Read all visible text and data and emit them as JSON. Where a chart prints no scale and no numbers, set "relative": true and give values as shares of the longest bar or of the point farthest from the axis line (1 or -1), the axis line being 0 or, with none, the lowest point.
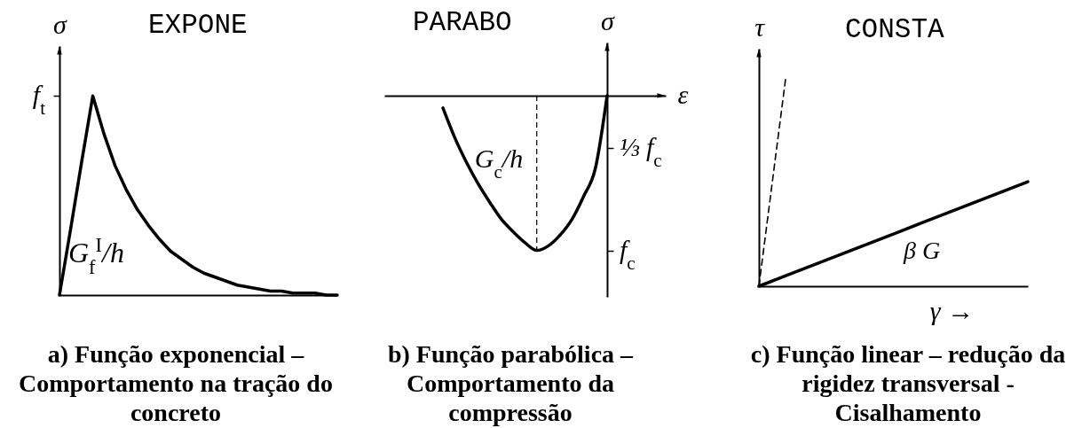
{
  "chart_data": [
    {
      "type": "line",
      "title": "EXPONE",
      "ylabel": "σ",
      "relative": true,
      "categories": [
        null,
        null,
        null,
        null,
        null,
        null,
        null,
        null,
        null,
        null,
        null,
        null,
        null,
        null,
        null,
        null,
        null,
        null,
        null,
        null,
        null,
        null,
        null,
        null,
        null,
        null
      ],
      "series": [
        {
          "name": "G$_{f}$$^{I}$/h",
          "color": "#000000",
          "values": [
            0,
            0.33,
            0.67,
            1,
            0.81,
            0.65,
            0.53,
            0.43,
            0.35,
            0.28,
            0.22,
            0.18,
            0.14,
            0.11,
            0.09,
            0.07,
            0.05,
            0.04,
            0.03,
            0.02,
            0.02,
            0.01,
            0.01,
            0.01,
            0,
            0
          ]
        }
      ],
      "annotations": [
        "f$_{t}$",
        "a) Função exponencial – Comportamento na tração do concreto"
      ]
    },
    {
      "type": "line",
      "title": "PARABO",
      "xlabel": "ε",
      "ylabel": "σ",
      "relative": true,
      "categories": [
        null,
        null,
        null,
        null,
        null,
        null,
        null,
        null,
        null,
        null,
        null,
        null,
        null,
        null,
        null,
        null,
        null,
        null,
        null,
        null,
        null,
        null,
        null,
        null,
        null
      ],
      "series": [
        {
          "name": "G$_{c}$/h",
          "color": "#000000",
          "values": [
            null,
            null,
            null,
            null,
            null,
            -0.08,
            -0.27,
            -0.43,
            -0.57,
            -0.69,
            -0.8,
            -0.88,
            -0.95,
            -1,
            -0.97,
            -0.9,
            -0.8,
            -0.65,
            -0.47,
            0,
            null,
            null,
            null,
            null,
            null
          ]
        }
      ],
      "annotations": [
        "⅓ f$_{c}$",
        "f$_{c}$",
        "b) Função parabólica – Comportamento da compressão"
      ]
    },
    {
      "type": "line",
      "title": "CONSTA",
      "xlabel": "γ →",
      "ylabel": "τ",
      "relative": true,
      "categories": [
        null,
        null,
        null,
        null,
        null,
        null,
        null,
        null,
        null,
        null,
        null
      ],
      "series": [
        {
          "name": "β G",
          "color": "#000000",
          "values": [
            0,
            0.05,
            0.1,
            0.15,
            0.2,
            0.25,
            0.3,
            0.35,
            0.4,
            0.45,
            0.5
          ]
        },
        {
          "color": "#000000",
          "line_style": "dashed",
          "values": [
            0,
            1,
            null,
            null,
            null,
            null,
            null,
            null,
            null,
            null,
            null
          ]
        }
      ],
      "annotations": [
        "c) Função linear – redução da rigidez transversal - Cisalhamento"
      ]
    }
  ]
}
